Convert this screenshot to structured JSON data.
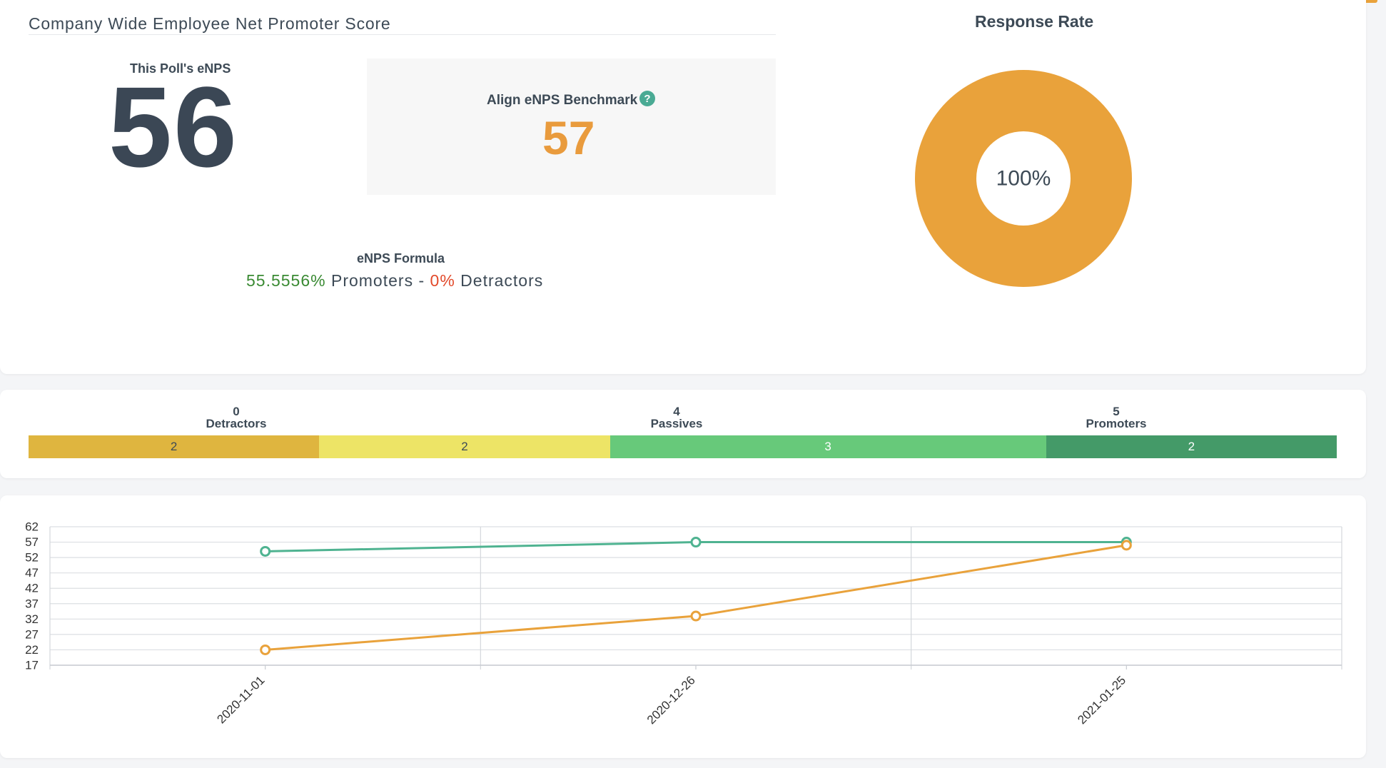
{
  "header": {
    "title": "Company Wide Employee Net Promoter Score"
  },
  "poll": {
    "label": "This Poll's eNPS",
    "value": "56"
  },
  "benchmark": {
    "label": "Align eNPS Benchmark",
    "help": "?",
    "value": "57"
  },
  "formula": {
    "label": "eNPS Formula",
    "promoters_pct": "55.5556%",
    "promoters_text": "Promoters",
    "minus": "-",
    "detractors_pct": "0%",
    "detractors_text": "Detractors"
  },
  "response_rate": {
    "title": "Response Rate",
    "label": "100%",
    "value": 100,
    "color": "#e9a23b"
  },
  "distribution": {
    "groups": [
      {
        "count": "0",
        "label": "Detractors"
      },
      {
        "count": "4",
        "label": "Passives"
      },
      {
        "count": "5",
        "label": "Promoters"
      }
    ],
    "segments": [
      {
        "value": "2",
        "color": "#dfb53f"
      },
      {
        "value": "2",
        "color": "#ede466"
      },
      {
        "value": "3",
        "color": "#67c97a",
        "text_color": "#ffffff"
      },
      {
        "value": "2",
        "color": "#449a68",
        "text_color": "#ffffff"
      }
    ]
  },
  "chart_data": {
    "type": "line",
    "x": [
      "2020-11-01",
      "2020-12-26",
      "2021-01-25"
    ],
    "y_ticks": [
      17,
      22,
      27,
      32,
      37,
      42,
      47,
      52,
      57,
      62
    ],
    "ylim": [
      17,
      62
    ],
    "grid": true,
    "series": [
      {
        "color": "#4fb391",
        "values": [
          54,
          57,
          57
        ]
      },
      {
        "color": "#e9a23b",
        "values": [
          22,
          33,
          56
        ]
      }
    ]
  }
}
